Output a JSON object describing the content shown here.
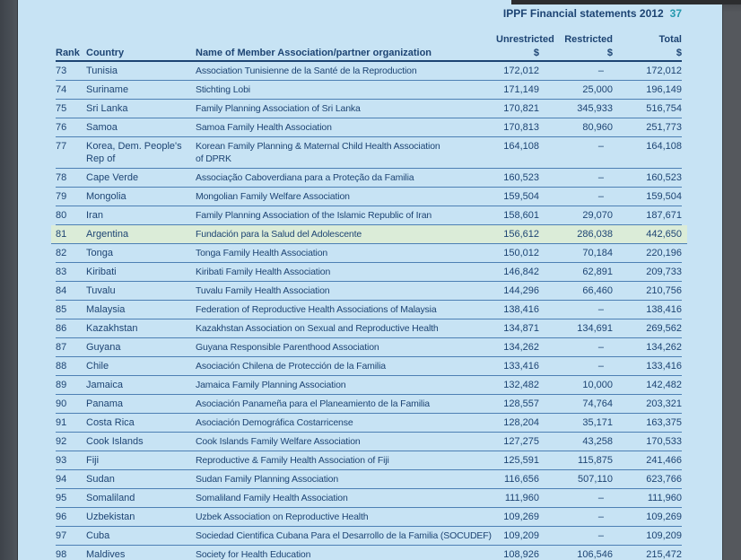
{
  "page": {
    "header_title": "IPPF Financial statements 2012",
    "page_number": "37"
  },
  "table": {
    "columns": {
      "rank": "Rank",
      "country": "Country",
      "name": "Name of Member Association/partner organization",
      "unrestricted": "Unrestricted",
      "restricted": "Restricted",
      "total": "Total",
      "currency": "$"
    },
    "rows": [
      {
        "rank": "73",
        "country": "Tunisia",
        "name": "Association Tunisienne de la Santé de la Reproduction",
        "unrestricted": "172,012",
        "restricted": "–",
        "total": "172,012",
        "highlighted": false
      },
      {
        "rank": "74",
        "country": "Suriname",
        "name": "Stichting Lobi",
        "unrestricted": "171,149",
        "restricted": "25,000",
        "total": "196,149",
        "highlighted": false
      },
      {
        "rank": "75",
        "country": "Sri Lanka",
        "name": "Family Planning Association of Sri Lanka",
        "unrestricted": "170,821",
        "restricted": "345,933",
        "total": "516,754",
        "highlighted": false
      },
      {
        "rank": "76",
        "country": "Samoa",
        "name": "Samoa Family Health Association",
        "unrestricted": "170,813",
        "restricted": "80,960",
        "total": "251,773",
        "highlighted": false
      },
      {
        "rank": "77",
        "country": "Korea, Dem. People's",
        "country_line2": "Rep of",
        "name": "Korean Family Planning & Maternal Child Health Association",
        "name_line2": "of DPRK",
        "unrestricted": "164,108",
        "restricted": "–",
        "total": "164,108",
        "highlighted": false
      },
      {
        "rank": "78",
        "country": "Cape Verde",
        "name": "Associação Caboverdiana para a Proteção da Familia",
        "unrestricted": "160,523",
        "restricted": "–",
        "total": "160,523",
        "highlighted": false
      },
      {
        "rank": "79",
        "country": "Mongolia",
        "name": "Mongolian Family Welfare Association",
        "unrestricted": "159,504",
        "restricted": "–",
        "total": "159,504",
        "highlighted": false
      },
      {
        "rank": "80",
        "country": "Iran",
        "name": "Family Planning Association of the Islamic Republic of Iran",
        "unrestricted": "158,601",
        "restricted": "29,070",
        "total": "187,671",
        "highlighted": false
      },
      {
        "rank": "81",
        "country": "Argentina",
        "name": "Fundación para la Salud del Adolescente",
        "unrestricted": "156,612",
        "restricted": "286,038",
        "total": "442,650",
        "highlighted": true
      },
      {
        "rank": "82",
        "country": "Tonga",
        "name": "Tonga Family Health Association",
        "unrestricted": "150,012",
        "restricted": "70,184",
        "total": "220,196",
        "highlighted": false
      },
      {
        "rank": "83",
        "country": "Kiribati",
        "name": "Kiribati Family Health Association",
        "unrestricted": "146,842",
        "restricted": "62,891",
        "total": "209,733",
        "highlighted": false
      },
      {
        "rank": "84",
        "country": "Tuvalu",
        "name": "Tuvalu Family Health Association",
        "unrestricted": "144,296",
        "restricted": "66,460",
        "total": "210,756",
        "highlighted": false
      },
      {
        "rank": "85",
        "country": "Malaysia",
        "name": "Federation of Reproductive Health Associations of Malaysia",
        "unrestricted": "138,416",
        "restricted": "–",
        "total": "138,416",
        "highlighted": false
      },
      {
        "rank": "86",
        "country": "Kazakhstan",
        "name": "Kazakhstan Association on Sexual and Reproductive Health",
        "unrestricted": "134,871",
        "restricted": "134,691",
        "total": "269,562",
        "highlighted": false
      },
      {
        "rank": "87",
        "country": "Guyana",
        "name": "Guyana Responsible Parenthood Association",
        "unrestricted": "134,262",
        "restricted": "–",
        "total": "134,262",
        "highlighted": false
      },
      {
        "rank": "88",
        "country": "Chile",
        "name": "Asociación Chilena de Protección de la Familia",
        "unrestricted": "133,416",
        "restricted": "–",
        "total": "133,416",
        "highlighted": false
      },
      {
        "rank": "89",
        "country": "Jamaica",
        "name": "Jamaica Family Planning Association",
        "unrestricted": "132,482",
        "restricted": "10,000",
        "total": "142,482",
        "highlighted": false
      },
      {
        "rank": "90",
        "country": "Panama",
        "name": "Asociación Panameña para el Planeamiento de la Familia",
        "unrestricted": "128,557",
        "restricted": "74,764",
        "total": "203,321",
        "highlighted": false
      },
      {
        "rank": "91",
        "country": "Costa Rica",
        "name": "Asociación Demográfica Costarricense",
        "unrestricted": "128,204",
        "restricted": "35,171",
        "total": "163,375",
        "highlighted": false
      },
      {
        "rank": "92",
        "country": "Cook Islands",
        "name": "Cook Islands Family Welfare Association",
        "unrestricted": "127,275",
        "restricted": "43,258",
        "total": "170,533",
        "highlighted": false
      },
      {
        "rank": "93",
        "country": "Fiji",
        "name": "Reproductive & Family Health Association of Fiji",
        "unrestricted": "125,591",
        "restricted": "115,875",
        "total": "241,466",
        "highlighted": false
      },
      {
        "rank": "94",
        "country": "Sudan",
        "name": "Sudan Family Planning Association",
        "unrestricted": "116,656",
        "restricted": "507,110",
        "total": "623,766",
        "highlighted": false
      },
      {
        "rank": "95",
        "country": "Somaliland",
        "name": "Somaliland Family Health Association",
        "unrestricted": "111,960",
        "restricted": "–",
        "total": "111,960",
        "highlighted": false
      },
      {
        "rank": "96",
        "country": "Uzbekistan",
        "name": "Uzbek Association on Reproductive Health",
        "unrestricted": "109,269",
        "restricted": "–",
        "total": "109,269",
        "highlighted": false
      },
      {
        "rank": "97",
        "country": "Cuba",
        "name": "Sociedad Cientifica Cubana Para el Desarrollo de la Familia (SOCUDEF)",
        "unrestricted": "109,209",
        "restricted": "–",
        "total": "109,209",
        "highlighted": false
      },
      {
        "rank": "98",
        "country": "Maldives",
        "name": "Society for Health Education",
        "unrestricted": "108,926",
        "restricted": "106,546",
        "total": "215,472",
        "highlighted": false
      }
    ]
  },
  "colors": {
    "page_background": "#c7e3f4",
    "text_navy": "#1d4473",
    "page_number_teal": "#2599ae",
    "row_separator_blue": "#4d80b4",
    "highlight_green": "#dbecd8",
    "gutter_gray": "#4e545b"
  }
}
